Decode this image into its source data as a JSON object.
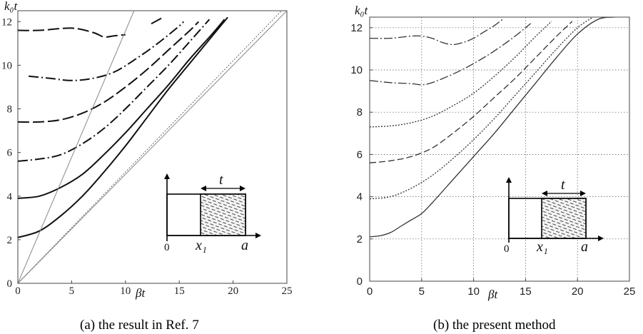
{
  "captions": {
    "a": "(a) the result in Ref. 7",
    "b": "(b) the present method"
  },
  "inset": {
    "origin": "0",
    "x1": "x₁",
    "a": "a",
    "t": "t"
  },
  "chart_data": [
    {
      "type": "line",
      "title": "",
      "xlabel": "βt",
      "ylabel": "k₀t",
      "xlim": [
        0,
        25
      ],
      "ylim": [
        0,
        12.5
      ],
      "xticks": [
        0,
        5,
        10,
        15,
        20,
        25
      ],
      "yticks": [
        0,
        2,
        4,
        6,
        8,
        10,
        12
      ],
      "grid": false,
      "series": [
        {
          "style": "solid",
          "points": [
            [
              0,
              2.1
            ],
            [
              2,
              2.4
            ],
            [
              4,
              3.1
            ],
            [
              6,
              4.0
            ],
            [
              8,
              5.1
            ],
            [
              10,
              6.3
            ],
            [
              12,
              7.6
            ],
            [
              14,
              8.9
            ],
            [
              16,
              10.1
            ],
            [
              18,
              11.3
            ],
            [
              19.5,
              12.2
            ]
          ]
        },
        {
          "style": "solid",
          "points": [
            [
              0,
              3.9
            ],
            [
              2,
              4.0
            ],
            [
              4,
              4.4
            ],
            [
              6,
              5.0
            ],
            [
              8,
              5.9
            ],
            [
              10,
              6.9
            ],
            [
              12,
              8.0
            ],
            [
              14,
              9.1
            ],
            [
              16,
              10.3
            ],
            [
              18,
              11.4
            ],
            [
              19.2,
              12.1
            ]
          ]
        },
        {
          "style": "dash-dot",
          "points": [
            [
              0,
              5.6
            ],
            [
              2,
              5.7
            ],
            [
              4,
              5.9
            ],
            [
              6,
              6.4
            ],
            [
              8,
              7.1
            ],
            [
              10,
              8.0
            ],
            [
              12,
              9.0
            ],
            [
              14,
              10.0
            ],
            [
              16,
              11.1
            ],
            [
              17.8,
              12.1
            ]
          ]
        },
        {
          "style": "long-dash",
          "points": [
            [
              0,
              7.4
            ],
            [
              2,
              7.4
            ],
            [
              4,
              7.5
            ],
            [
              6,
              7.8
            ],
            [
              8,
              8.3
            ],
            [
              10,
              9.0
            ],
            [
              12,
              9.8
            ],
            [
              14,
              10.7
            ],
            [
              16,
              11.6
            ],
            [
              16.8,
              12.0
            ]
          ]
        },
        {
          "style": "dash-dot",
          "points": [
            [
              1,
              9.5
            ],
            [
              3,
              9.4
            ],
            [
              5,
              9.3
            ],
            [
              7,
              9.4
            ],
            [
              9,
              9.7
            ],
            [
              11,
              10.3
            ],
            [
              13,
              11.0
            ],
            [
              15,
              11.8
            ],
            [
              15.4,
              12.0
            ]
          ]
        },
        {
          "style": "long-dash",
          "points": [
            [
              0,
              11.6
            ],
            [
              2,
              11.6
            ],
            [
              5,
              11.7
            ],
            [
              7,
              11.5
            ],
            [
              8,
              11.3
            ],
            [
              9,
              11.35
            ],
            [
              10,
              11.4
            ]
          ]
        },
        {
          "style": "long-dash",
          "points": [
            [
              12.4,
              11.9
            ],
            [
              13.5,
              12.2
            ]
          ]
        },
        {
          "style": "thin-solid",
          "points": [
            [
              0,
              0
            ],
            [
              10.8,
              12.5
            ]
          ]
        },
        {
          "style": "thin-solid",
          "points": [
            [
              0,
              0
            ],
            [
              25,
              12.5
            ]
          ]
        },
        {
          "style": "dotted",
          "points": [
            [
              0,
              0
            ],
            [
              24.5,
              12.5
            ]
          ]
        }
      ]
    },
    {
      "type": "line",
      "title": "",
      "xlabel": "βt",
      "ylabel": "k₀t",
      "xlim": [
        0,
        25
      ],
      "ylim": [
        0,
        12.5
      ],
      "xticks": [
        0,
        5,
        10,
        15,
        20,
        25
      ],
      "yticks": [
        0,
        2,
        4,
        6,
        8,
        10,
        12
      ],
      "grid": true,
      "series": [
        {
          "style": "solid",
          "points": [
            [
              0,
              2.1
            ],
            [
              1,
              2.15
            ],
            [
              2,
              2.3
            ],
            [
              3,
              2.6
            ],
            [
              4,
              2.9
            ],
            [
              5,
              3.2
            ],
            [
              6,
              3.7
            ],
            [
              8,
              4.8
            ],
            [
              10,
              5.9
            ],
            [
              12,
              7.0
            ],
            [
              14,
              8.2
            ],
            [
              16,
              9.4
            ],
            [
              18,
              10.6
            ],
            [
              20,
              11.7
            ],
            [
              22,
              12.4
            ],
            [
              23.5,
              12.5
            ]
          ]
        },
        {
          "style": "dotted",
          "points": [
            [
              0,
              3.9
            ],
            [
              2,
              4.0
            ],
            [
              4,
              4.4
            ],
            [
              6,
              5.0
            ],
            [
              8,
              5.8
            ],
            [
              10,
              6.7
            ],
            [
              12,
              7.7
            ],
            [
              14,
              8.8
            ],
            [
              16,
              9.9
            ],
            [
              18,
              11.0
            ],
            [
              20,
              12.0
            ],
            [
              21.5,
              12.5
            ]
          ]
        },
        {
          "style": "dashed",
          "points": [
            [
              0,
              5.6
            ],
            [
              2,
              5.7
            ],
            [
              4,
              5.9
            ],
            [
              6,
              6.3
            ],
            [
              8,
              7.0
            ],
            [
              10,
              7.8
            ],
            [
              12,
              8.7
            ],
            [
              14,
              9.6
            ],
            [
              16,
              10.6
            ],
            [
              18,
              11.6
            ],
            [
              19.5,
              12.3
            ]
          ]
        },
        {
          "style": "dotted",
          "points": [
            [
              0,
              7.3
            ],
            [
              2,
              7.35
            ],
            [
              4,
              7.5
            ],
            [
              6,
              7.8
            ],
            [
              8,
              8.3
            ],
            [
              10,
              8.9
            ],
            [
              12,
              9.7
            ],
            [
              14,
              10.6
            ],
            [
              16,
              11.6
            ],
            [
              17.5,
              12.3
            ]
          ]
        },
        {
          "style": "dash-dot",
          "points": [
            [
              0,
              9.5
            ],
            [
              2,
              9.4
            ],
            [
              4,
              9.35
            ],
            [
              5,
              9.3
            ],
            [
              6,
              9.4
            ],
            [
              8,
              9.8
            ],
            [
              10,
              10.3
            ],
            [
              12,
              10.9
            ],
            [
              14,
              11.6
            ],
            [
              15.5,
              12.2
            ]
          ]
        },
        {
          "style": "dash-dot",
          "points": [
            [
              0,
              11.5
            ],
            [
              2,
              11.5
            ],
            [
              4,
              11.6
            ],
            [
              5,
              11.6
            ],
            [
              6,
              11.5
            ],
            [
              7,
              11.3
            ],
            [
              8,
              11.2
            ],
            [
              9,
              11.3
            ],
            [
              10,
              11.5
            ],
            [
              11,
              11.8
            ],
            [
              12,
              12.1
            ],
            [
              12.8,
              12.4
            ]
          ]
        }
      ]
    }
  ]
}
